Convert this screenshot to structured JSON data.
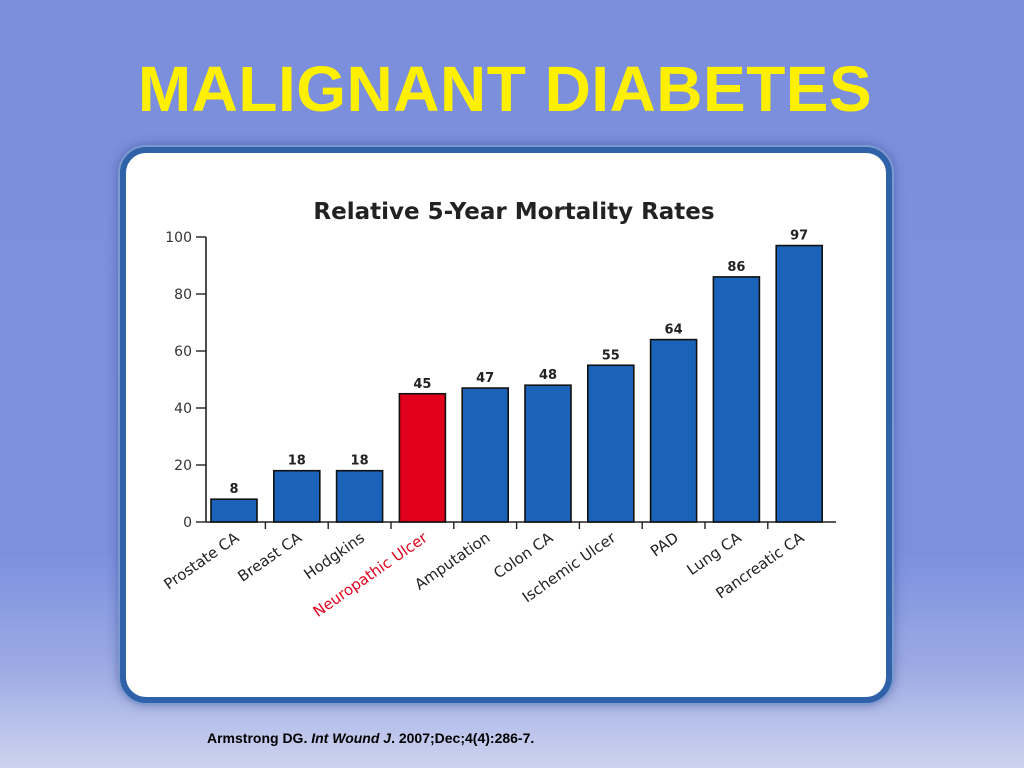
{
  "slide": {
    "title": "MALIGNANT DIABETES",
    "citation": {
      "author": "Armstrong DG. ",
      "journal": "Int Wound J",
      "rest": ". 2007;Dec;4(4):286-7."
    }
  },
  "colors": {
    "title": "#ffef00",
    "bar_default": "#1a63b8",
    "bar_highlight": "#e0001b",
    "label_highlight": "#e0001b"
  },
  "chart_data": {
    "type": "bar",
    "title": "Relative 5-Year Mortality Rates",
    "xlabel": "",
    "ylabel": "",
    "ylim": [
      0,
      100
    ],
    "yticks": [
      0,
      20,
      40,
      60,
      80,
      100
    ],
    "grid": false,
    "categories": [
      "Prostate CA",
      "Breast CA",
      "Hodgkins",
      "Neuropathic Ulcer",
      "Amputation",
      "Colon CA",
      "Ischemic Ulcer",
      "PAD",
      "Lung CA",
      "Pancreatic CA"
    ],
    "values": [
      8,
      18,
      18,
      45,
      47,
      48,
      55,
      64,
      86,
      97
    ],
    "highlight": [
      "Neuropathic Ulcer"
    ],
    "data_labels": true
  }
}
